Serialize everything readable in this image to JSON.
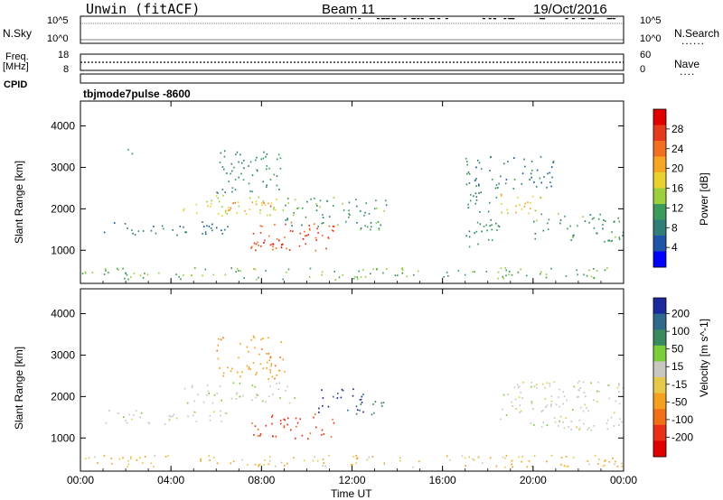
{
  "header": {
    "site": "Unwin (fitACF)",
    "beam": "Beam 11",
    "date": "19/Oct/2016"
  },
  "left_labels": {
    "nsky": "N.Sky",
    "freq": "Freq.",
    "mhz": "[MHz]",
    "cpid": "CPID"
  },
  "right_labels": {
    "nsearch": "N.Search",
    "nave": "Nave"
  },
  "cpid_text": "tbjmode7pulse  -8600",
  "noise_ticks": {
    "top": "10^5",
    "bottom": "10^0"
  },
  "freq_ticks": {
    "top": "18",
    "bottom": "8"
  },
  "nave_ticks": {
    "top": "60",
    "bottom": "0"
  },
  "chart_data": [
    {
      "type": "heatmap",
      "title": "",
      "xlabel": "Time UT",
      "ylabel": "Slant Range [km]",
      "x_ticks": [
        "00:00",
        "04:00",
        "08:00",
        "12:00",
        "16:00",
        "20:00",
        "00:00"
      ],
      "y_ticks": [
        "1000",
        "2000",
        "3000",
        "4000"
      ],
      "xlim": [
        0,
        24
      ],
      "ylim": [
        200,
        4600
      ],
      "colorbar": {
        "label": "Power [dB]",
        "ticks": [
          "4",
          "8",
          "12",
          "16",
          "20",
          "24",
          "28"
        ],
        "range": [
          0,
          30
        ],
        "colors": [
          "#0000ff",
          "#1f55a8",
          "#2f7e78",
          "#3d9a5d",
          "#9bcf3c",
          "#e8d230",
          "#f5a623",
          "#f07020",
          "#e53a1c",
          "#e00000"
        ]
      },
      "echo_regions": [
        {
          "t0": 1.0,
          "t1": 6.5,
          "r0": 1350,
          "r1": 1700,
          "db": 7
        },
        {
          "t0": 4.5,
          "t1": 9.5,
          "r0": 1850,
          "r1": 2350,
          "db": 15
        },
        {
          "t0": 6.0,
          "t1": 8.5,
          "r0": 1950,
          "r1": 2200,
          "db": 22
        },
        {
          "t0": 7.5,
          "t1": 11.2,
          "r0": 1000,
          "r1": 1750,
          "db": 24
        },
        {
          "t0": 7.8,
          "t1": 10.0,
          "r0": 1050,
          "r1": 1300,
          "db": 27
        },
        {
          "t0": 9.0,
          "t1": 13.5,
          "r0": 1500,
          "r1": 2300,
          "db": 10
        },
        {
          "t0": 6.0,
          "t1": 9.0,
          "r0": 2400,
          "r1": 3500,
          "db": 9
        },
        {
          "t0": 2.0,
          "t1": 2.4,
          "r0": 3300,
          "r1": 3550,
          "db": 10
        },
        {
          "t0": 0.0,
          "t1": 24.0,
          "r0": 300,
          "r1": 600,
          "db": 12
        },
        {
          "t0": 18.5,
          "t1": 20.5,
          "r0": 1900,
          "r1": 2400,
          "db": 17
        },
        {
          "t0": 19.2,
          "t1": 20.3,
          "r0": 2050,
          "r1": 2250,
          "db": 21
        },
        {
          "t0": 20.0,
          "t1": 24.0,
          "r0": 1200,
          "r1": 1900,
          "db": 10
        },
        {
          "t0": 17.0,
          "t1": 18.5,
          "r0": 1100,
          "r1": 2600,
          "db": 9
        },
        {
          "t0": 17.0,
          "t1": 21.0,
          "r0": 2500,
          "r1": 3300,
          "db": 7
        }
      ]
    },
    {
      "type": "heatmap",
      "title": "",
      "xlabel": "Time UT",
      "ylabel": "Slant Range [km]",
      "x_ticks": [
        "00:00",
        "04:00",
        "08:00",
        "12:00",
        "16:00",
        "20:00",
        "00:00"
      ],
      "y_ticks": [
        "1000",
        "2000",
        "3000",
        "4000"
      ],
      "xlim": [
        0,
        24
      ],
      "ylim": [
        200,
        4600
      ],
      "colorbar": {
        "label": "Velocity [m s^-1]",
        "ticks": [
          "200",
          "100",
          "50",
          "15",
          "-15",
          "-50",
          "-100",
          "-200"
        ],
        "colors": [
          "#1a2a9c",
          "#2f6a8c",
          "#3a8a60",
          "#7ccd3a",
          "#c8c8c0",
          "#e6c84a",
          "#f4a020",
          "#f07018",
          "#e83018",
          "#e00000"
        ]
      },
      "echo_regions": [
        {
          "t0": 1.0,
          "t1": 6.5,
          "r0": 1350,
          "r1": 1700,
          "v": 0
        },
        {
          "t0": 4.5,
          "t1": 9.5,
          "r0": 1850,
          "r1": 2350,
          "v": 5
        },
        {
          "t0": 7.5,
          "t1": 11.2,
          "r0": 1000,
          "r1": 1600,
          "v": -160
        },
        {
          "t0": 10.5,
          "t1": 12.5,
          "r0": 1600,
          "r1": 2200,
          "v": 160
        },
        {
          "t0": 12.0,
          "t1": 13.5,
          "r0": 1500,
          "r1": 1900,
          "v": 70
        },
        {
          "t0": 0.0,
          "t1": 24.0,
          "r0": 300,
          "r1": 600,
          "v": -30
        },
        {
          "t0": 18.5,
          "t1": 24.0,
          "r0": 1200,
          "r1": 2400,
          "v": 0
        },
        {
          "t0": 6.0,
          "t1": 9.0,
          "r0": 2400,
          "r1": 3500,
          "v": -60
        }
      ]
    }
  ]
}
